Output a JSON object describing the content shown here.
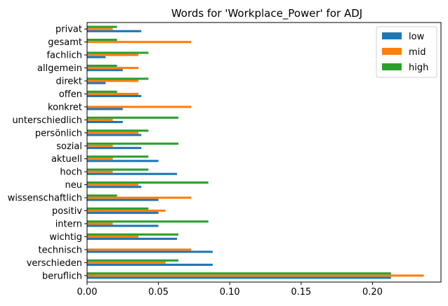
{
  "chart_data": {
    "type": "bar",
    "orientation": "horizontal",
    "title": "Words for 'Workplace_Power' for ADJ",
    "xlabel": "",
    "ylabel": "",
    "xlim": [
      0.0,
      0.248
    ],
    "xticks": [
      "0.00",
      "0.05",
      "0.10",
      "0.15",
      "0.20"
    ],
    "grid": false,
    "legend_position": "top-right",
    "categories": [
      "beruflich",
      "verschieden",
      "technisch",
      "wichtig",
      "intern",
      "positiv",
      "wissenschaftlich",
      "neu",
      "hoch",
      "aktuell",
      "sozial",
      "persönlich",
      "unterschiedlich",
      "konkret",
      "offen",
      "direkt",
      "allgemein",
      "fachlich",
      "gesamt",
      "privat"
    ],
    "series": [
      {
        "name": "low",
        "color": "#1f77b4",
        "values": [
          0.213,
          0.088,
          0.088,
          0.063,
          0.05,
          0.05,
          0.05,
          0.038,
          0.063,
          0.05,
          0.038,
          0.038,
          0.025,
          0.025,
          0.038,
          0.013,
          0.025,
          0.013,
          0.0,
          0.038
        ]
      },
      {
        "name": "mid",
        "color": "#ff7f0e",
        "values": [
          0.236,
          0.055,
          0.073,
          0.036,
          0.018,
          0.055,
          0.073,
          0.036,
          0.018,
          0.018,
          0.018,
          0.036,
          0.018,
          0.073,
          0.036,
          0.036,
          0.036,
          0.036,
          0.073,
          0.018
        ]
      },
      {
        "name": "high",
        "color": "#2ca02c",
        "values": [
          0.213,
          0.064,
          0.0,
          0.064,
          0.085,
          0.043,
          0.021,
          0.085,
          0.043,
          0.043,
          0.064,
          0.043,
          0.064,
          0.0,
          0.021,
          0.043,
          0.021,
          0.043,
          0.021,
          0.021
        ]
      }
    ]
  }
}
